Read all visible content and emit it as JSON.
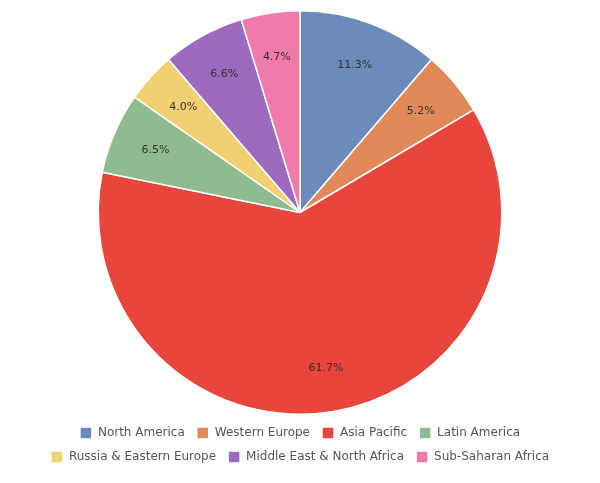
{
  "chart_data": {
    "type": "pie",
    "categories": [
      "North America",
      "Western Europe",
      "Asia Pacific",
      "Latin America",
      "Russia & Eastern Europe",
      "Middle East & North Africa",
      "Sub-Saharan Africa"
    ],
    "values": [
      11.3,
      5.2,
      61.7,
      6.5,
      4.0,
      6.6,
      4.7
    ],
    "value_labels": [
      "11.3%",
      "5.2%",
      "61.7%",
      "6.5%",
      "4.0%",
      "6.6%",
      "4.7%"
    ],
    "colors": [
      "#6b8cba",
      "#e08a5a",
      "#e8453c",
      "#8fbb8f",
      "#f0d070",
      "#9b6abf",
      "#f07aaa"
    ],
    "legend": "bottom",
    "data_labels": true
  }
}
